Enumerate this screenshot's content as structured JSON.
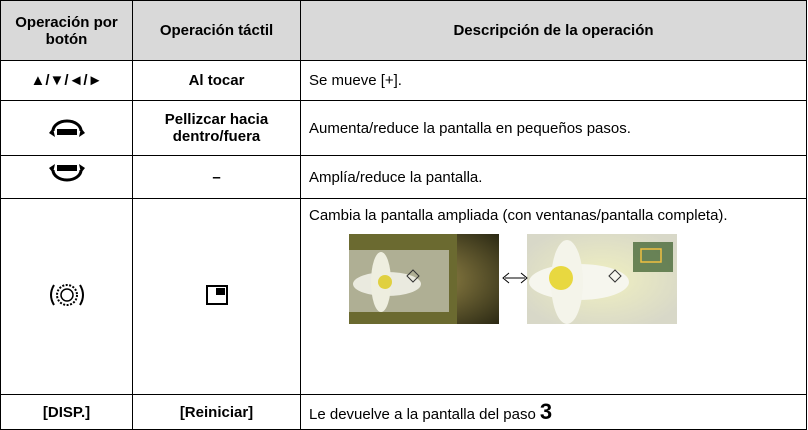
{
  "table": {
    "header": [
      "Operación por botón",
      "Operación táctil",
      "Descripción de la operación"
    ],
    "rows": [
      {
        "button": "▲/▼/◄/►",
        "touch": "Al tocar",
        "description": "Se mueve [+]."
      },
      {
        "touch": "Pellizcar hacia dentro/fuera",
        "description": "Aumenta/reduce la pantalla en pequeños pasos."
      },
      {
        "touch": "–",
        "description": "Amplía/reduce la pantalla."
      },
      {
        "description": "Cambia la pantalla ampliada (con ventanas/pantalla completa)."
      },
      {
        "button": "[DISP.]",
        "touch": "[Reiniciar]",
        "description": "Le devuelve a la pantalla del paso",
        "step": "3"
      }
    ]
  }
}
